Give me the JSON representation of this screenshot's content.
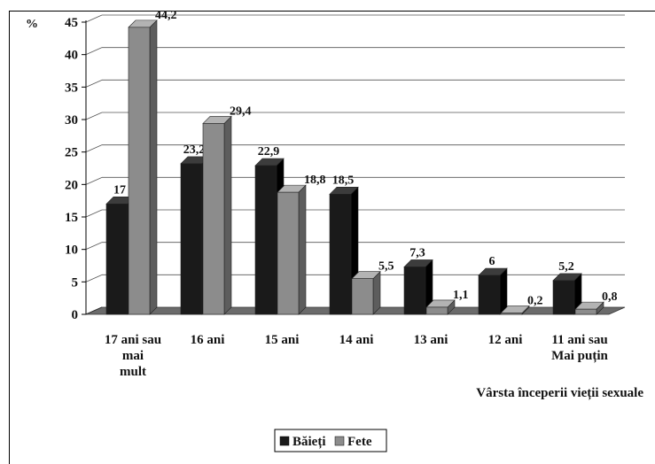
{
  "chart_data": {
    "type": "bar",
    "y_unit_label": "%",
    "xlabel": "Vârsta începerii vieții sexuale",
    "ylim": [
      0,
      45
    ],
    "yticks": [
      0,
      5,
      10,
      15,
      20,
      25,
      30,
      35,
      40,
      45
    ],
    "categories": [
      [
        "17 ani sau",
        "mai",
        "mult"
      ],
      [
        "16 ani"
      ],
      [
        "15 ani"
      ],
      [
        "14 ani"
      ],
      [
        "13 ani"
      ],
      [
        "12 ani"
      ],
      [
        "11 ani sau",
        "Mai puțin"
      ]
    ],
    "series": [
      {
        "name": "Băieți",
        "values": [
          17,
          23.2,
          22.9,
          18.5,
          7.3,
          6,
          5.2
        ],
        "labels": [
          "17",
          "23,2",
          "22,9",
          "18,5",
          "7,3",
          "6",
          "5,2"
        ],
        "color": "#1a1a1a"
      },
      {
        "name": "Fete",
        "values": [
          44.2,
          29.4,
          18.8,
          5.5,
          1.1,
          0.2,
          0.8
        ],
        "labels": [
          "44,2",
          "29,4",
          "18,8",
          "5,5",
          "1,1",
          "0,2",
          "0,8"
        ],
        "color": "#8c8c8c"
      }
    ],
    "gridlines": true,
    "legend_position": "bottom"
  }
}
